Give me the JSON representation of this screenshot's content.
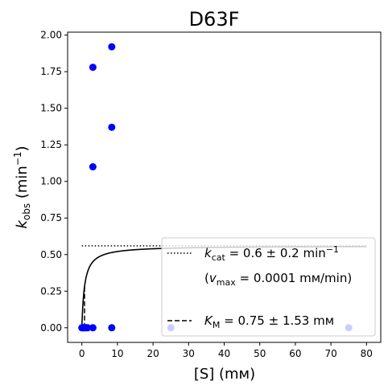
{
  "chart_data": {
    "type": "scatter",
    "title": "D63F",
    "xlabel": "[S] (mᴍ)",
    "ylabel": {
      "main": "k",
      "sub": "obs",
      "unit": " (min",
      "sup": "−1",
      "close": ")"
    },
    "xlim": [
      -4,
      84
    ],
    "ylim": [
      -0.1,
      2.02
    ],
    "xticks": [
      0,
      10,
      20,
      30,
      40,
      50,
      60,
      70,
      80
    ],
    "yticks": [
      0.0,
      0.25,
      0.5,
      0.75,
      1.0,
      1.25,
      1.5,
      1.75,
      2.0
    ],
    "ytick_labels": [
      "0.00",
      "0.25",
      "0.50",
      "0.75",
      "1.00",
      "1.25",
      "1.50",
      "1.75",
      "2.00"
    ],
    "grid": false,
    "legend_position": "lower-right",
    "colors": {
      "points": "#0000ff",
      "fit": "#000000",
      "legend_edge": "#cccccc"
    },
    "points": [
      {
        "x": 0.0,
        "y": 0.0
      },
      {
        "x": 0.2,
        "y": 0.0
      },
      {
        "x": 0.5,
        "y": 0.0
      },
      {
        "x": 0.8,
        "y": 0.0
      },
      {
        "x": 1.2,
        "y": 0.0
      },
      {
        "x": 1.6,
        "y": 0.0
      },
      {
        "x": 3.1,
        "y": 0.0
      },
      {
        "x": 8.4,
        "y": 0.0
      },
      {
        "x": 25.0,
        "y": 0.0
      },
      {
        "x": 75.0,
        "y": 0.0
      },
      {
        "x": 3.1,
        "y": 1.78
      },
      {
        "x": 3.1,
        "y": 1.1
      },
      {
        "x": 8.4,
        "y": 1.92
      },
      {
        "x": 8.4,
        "y": 1.37
      }
    ],
    "fit_curve": {
      "kcat": 0.56,
      "km": 0.75,
      "x_range": [
        0.0,
        80
      ]
    },
    "kcat_line": {
      "y": 0.56,
      "x_range": [
        0,
        80
      ]
    },
    "km_line": {
      "x": 0.75,
      "y_range": [
        0,
        0.28
      ]
    },
    "legend": {
      "kcat_main": "k",
      "kcat_sub": "cat",
      "kcat_value": " = 0.6 ± 0.2 min",
      "kcat_sup": "−1",
      "vmax_open": "(",
      "vmax_main": "v",
      "vmax_sub": "max",
      "vmax_value": " = 0.0001 mᴍ/min)",
      "km_main": "K",
      "km_sub": "M",
      "km_value": " = 0.75 ± 1.53 mᴍ"
    }
  }
}
